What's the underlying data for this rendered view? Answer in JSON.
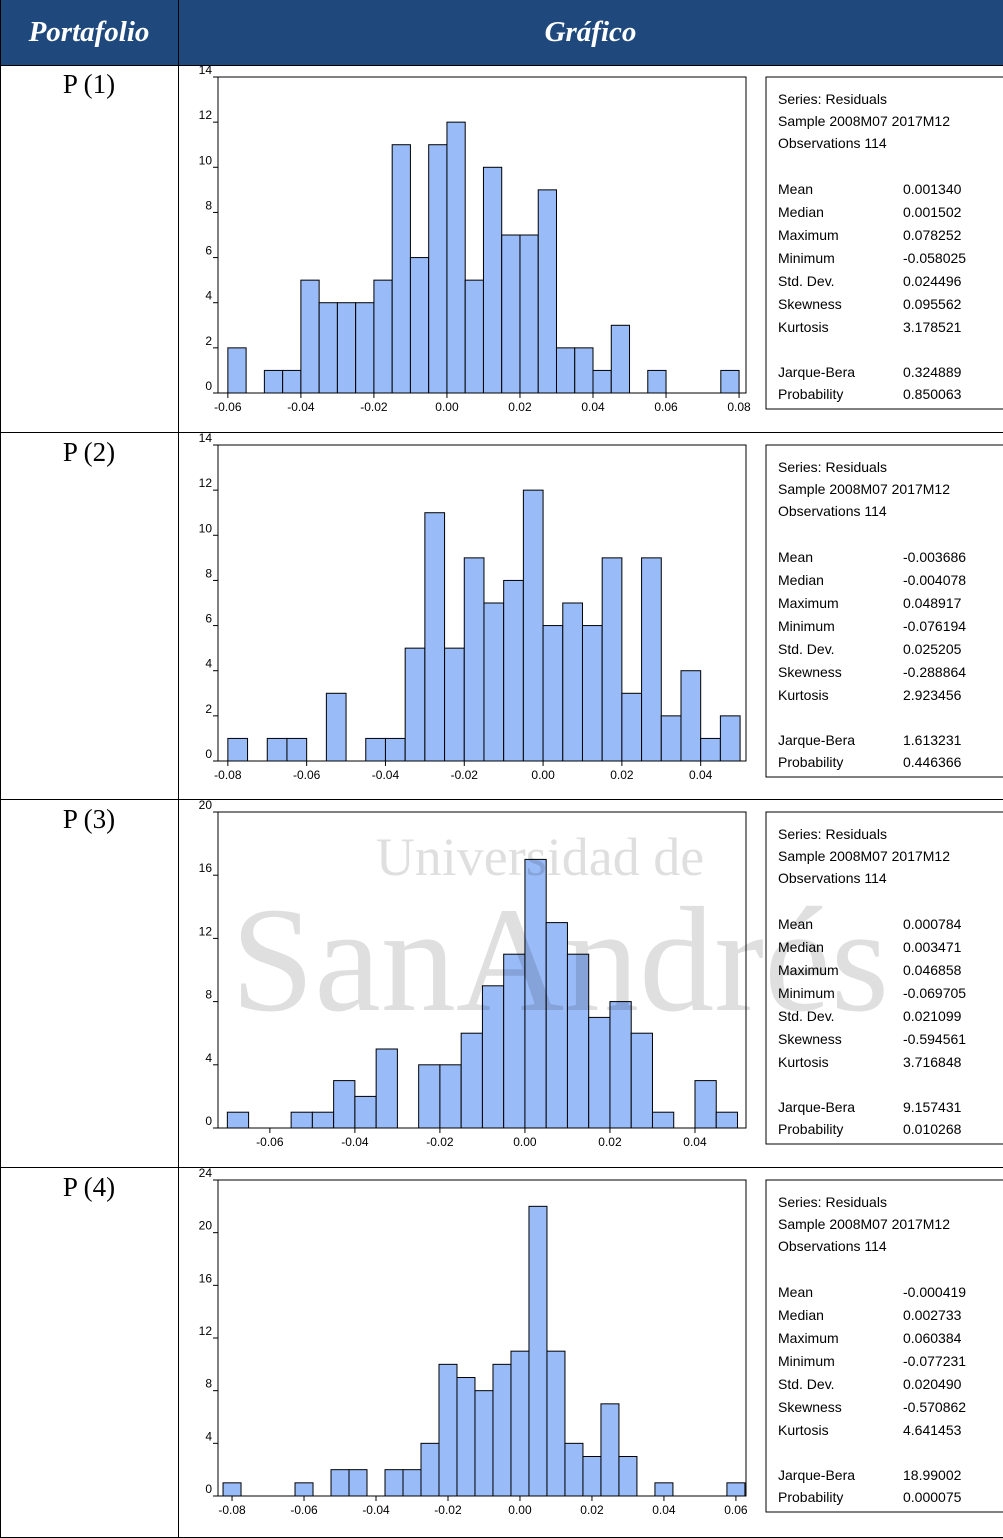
{
  "table": {
    "headers": [
      "Portafolio",
      "Gráfico"
    ],
    "rows": [
      "P (1)",
      "P (2)",
      "P (3)",
      "P (4)"
    ]
  },
  "watermark": [
    "Universidad de",
    "SanAndrés"
  ],
  "chart_data": [
    {
      "type": "histogram",
      "color": "#99bbf8",
      "bins": [
        -0.06,
        -0.055,
        -0.05,
        -0.045,
        -0.04,
        -0.035,
        -0.03,
        -0.025,
        -0.02,
        -0.015,
        -0.01,
        -0.005,
        0,
        0.005,
        0.01,
        0.015,
        0.02,
        0.025,
        0.03,
        0.035,
        0.04,
        0.045,
        0.05,
        0.055,
        0.06,
        0.065,
        0.07,
        0.075,
        0.08
      ],
      "values": [
        2,
        0,
        1,
        1,
        5,
        4,
        4,
        4,
        5,
        11,
        6,
        11,
        12,
        5,
        10,
        7,
        7,
        9,
        2,
        2,
        1,
        3,
        0,
        1,
        0,
        0,
        0,
        1
      ],
      "xlim": [
        -0.0627,
        0.0819
      ],
      "xticks": [
        {
          "value": -0.06,
          "label": "-0.06"
        },
        {
          "value": -0.04,
          "label": "-0.04"
        },
        {
          "value": -0.02,
          "label": "-0.02"
        },
        {
          "value": 0,
          "label": "0.00"
        },
        {
          "value": 0.02,
          "label": "0.02"
        },
        {
          "value": 0.04,
          "label": "0.04"
        },
        {
          "value": 0.06,
          "label": "0.06"
        },
        {
          "value": 0.08,
          "label": "0.08"
        }
      ],
      "ylim": [
        0,
        14
      ],
      "yticks": [
        0,
        2,
        4,
        6,
        8,
        10,
        12,
        14
      ],
      "stats": {
        "header": [
          "Series: Residuals",
          "Sample 2008M07 2017M12",
          "Observations 114"
        ],
        "moments": [
          [
            "Mean",
            "0.001340"
          ],
          [
            "Median",
            "0.001502"
          ],
          [
            "Maximum",
            "0.078252"
          ],
          [
            "Minimum",
            "-0.058025"
          ],
          [
            "Std. Dev.",
            "0.024496"
          ],
          [
            "Skewness",
            "0.095562"
          ],
          [
            "Kurtosis",
            "3.178521"
          ]
        ],
        "tests": [
          [
            "Jarque-Bera",
            "0.324889"
          ],
          [
            "Probability",
            "0.850063"
          ]
        ]
      }
    },
    {
      "type": "histogram",
      "color": "#99bbf8",
      "bins": [
        -0.08,
        -0.075,
        -0.07,
        -0.065,
        -0.06,
        -0.055,
        -0.05,
        -0.045,
        -0.04,
        -0.035,
        -0.03,
        -0.025,
        -0.02,
        -0.015,
        -0.01,
        -0.005,
        0,
        0.005,
        0.01,
        0.015,
        0.02,
        0.025,
        0.03,
        0.035,
        0.04,
        0.045,
        0.05
      ],
      "values": [
        1,
        0,
        1,
        1,
        0,
        3,
        0,
        1,
        1,
        5,
        11,
        5,
        9,
        7,
        8,
        12,
        6,
        7,
        6,
        9,
        3,
        9,
        2,
        4,
        1,
        2
      ],
      "xlim": [
        -0.0825,
        0.0515
      ],
      "xticks": [
        {
          "value": -0.08,
          "label": "-0.08"
        },
        {
          "value": -0.06,
          "label": "-0.06"
        },
        {
          "value": -0.04,
          "label": "-0.04"
        },
        {
          "value": -0.02,
          "label": "-0.02"
        },
        {
          "value": 0,
          "label": "0.00"
        },
        {
          "value": 0.02,
          "label": "0.02"
        },
        {
          "value": 0.04,
          "label": "0.04"
        }
      ],
      "ylim": [
        0,
        14
      ],
      "yticks": [
        0,
        2,
        4,
        6,
        8,
        10,
        12,
        14
      ],
      "stats": {
        "header": [
          "Series: Residuals",
          "Sample 2008M07 2017M12",
          "Observations 114"
        ],
        "moments": [
          [
            "Mean",
            "-0.003686"
          ],
          [
            "Median",
            "-0.004078"
          ],
          [
            "Maximum",
            "0.048917"
          ],
          [
            "Minimum",
            "-0.076194"
          ],
          [
            "Std. Dev.",
            "0.025205"
          ],
          [
            "Skewness",
            "-0.288864"
          ],
          [
            "Kurtosis",
            "2.923456"
          ]
        ],
        "tests": [
          [
            "Jarque-Bera",
            "1.613231"
          ],
          [
            "Probability",
            "0.446366"
          ]
        ]
      }
    },
    {
      "type": "histogram",
      "color": "#99bbf8",
      "bins": [
        -0.07,
        -0.065,
        -0.06,
        -0.055,
        -0.05,
        -0.045,
        -0.04,
        -0.035,
        -0.03,
        -0.025,
        -0.02,
        -0.015,
        -0.01,
        -0.005,
        0,
        0.005,
        0.01,
        0.015,
        0.02,
        0.025,
        0.03,
        0.035,
        0.04,
        0.045,
        0.05
      ],
      "values": [
        1,
        0,
        0,
        1,
        1,
        3,
        2,
        5,
        0,
        4,
        4,
        6,
        9,
        11,
        17,
        13,
        11,
        7,
        8,
        6,
        1,
        0,
        3,
        1
      ],
      "xlim": [
        -0.0722,
        0.052
      ],
      "xticks": [
        {
          "value": -0.06,
          "label": "-0.06"
        },
        {
          "value": -0.04,
          "label": "-0.04"
        },
        {
          "value": -0.02,
          "label": "-0.02"
        },
        {
          "value": 0,
          "label": "0.00"
        },
        {
          "value": 0.02,
          "label": "0.02"
        },
        {
          "value": 0.04,
          "label": "0.04"
        }
      ],
      "ylim": [
        0,
        20
      ],
      "yticks": [
        0,
        4,
        8,
        12,
        16,
        20
      ],
      "stats": {
        "header": [
          "Series: Residuals",
          "Sample 2008M07 2017M12",
          "Observations 114"
        ],
        "moments": [
          [
            "Mean",
            "0.000784"
          ],
          [
            "Median",
            "0.003471"
          ],
          [
            "Maximum",
            "0.046858"
          ],
          [
            "Minimum",
            "-0.069705"
          ],
          [
            "Std. Dev.",
            "0.021099"
          ],
          [
            "Skewness",
            "-0.594561"
          ],
          [
            "Kurtosis",
            "3.716848"
          ]
        ],
        "tests": [
          [
            "Jarque-Bera",
            "9.157431"
          ],
          [
            "Probability",
            "0.010268"
          ]
        ]
      }
    },
    {
      "type": "histogram",
      "color": "#99bbf8",
      "bins": [
        -0.0825,
        -0.0775,
        -0.0725,
        -0.0675,
        -0.0625,
        -0.0575,
        -0.0525,
        -0.0475,
        -0.0425,
        -0.0375,
        -0.0325,
        -0.0275,
        -0.0225,
        -0.0175,
        -0.0125,
        -0.0075,
        -0.0025,
        0.0025,
        0.0075,
        0.0125,
        0.0175,
        0.0225,
        0.0275,
        0.0325,
        0.0375,
        0.0425,
        0.0475,
        0.0525,
        0.0575,
        0.0625
      ],
      "values": [
        1,
        0,
        0,
        0,
        1,
        0,
        2,
        2,
        0,
        2,
        2,
        4,
        10,
        9,
        8,
        10,
        11,
        22,
        11,
        4,
        3,
        7,
        3,
        0,
        1,
        0,
        0,
        0,
        1
      ],
      "xlim": [
        -0.0839,
        0.0628
      ],
      "xticks": [
        {
          "value": -0.08,
          "label": "-0.08"
        },
        {
          "value": -0.06,
          "label": "-0.06"
        },
        {
          "value": -0.04,
          "label": "-0.04"
        },
        {
          "value": -0.02,
          "label": "-0.02"
        },
        {
          "value": 0,
          "label": "0.00"
        },
        {
          "value": 0.02,
          "label": "0.02"
        },
        {
          "value": 0.04,
          "label": "0.04"
        },
        {
          "value": 0.06,
          "label": "0.06"
        }
      ],
      "ylim": [
        0,
        24
      ],
      "yticks": [
        0,
        4,
        8,
        12,
        16,
        20,
        24
      ],
      "stats": {
        "header": [
          "Series: Residuals",
          "Sample 2008M07 2017M12",
          "Observations 114"
        ],
        "moments": [
          [
            "Mean",
            "-0.000419"
          ],
          [
            "Median",
            "0.002733"
          ],
          [
            "Maximum",
            "0.060384"
          ],
          [
            "Minimum",
            "-0.077231"
          ],
          [
            "Std. Dev.",
            "0.020490"
          ],
          [
            "Skewness",
            "-0.570862"
          ],
          [
            "Kurtosis",
            "4.641453"
          ]
        ],
        "tests": [
          [
            "Jarque-Bera",
            "18.99002"
          ],
          [
            "Probability",
            "0.000075"
          ]
        ]
      }
    }
  ]
}
